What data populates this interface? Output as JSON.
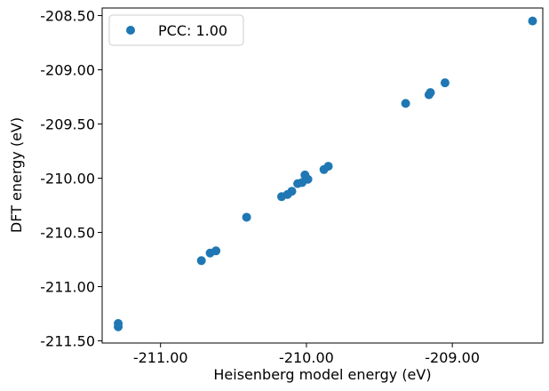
{
  "chart_data": {
    "type": "scatter",
    "xlabel": "Heisenberg model energy (eV)",
    "ylabel": "DFT energy (eV)",
    "xlim": [
      -211.4,
      -208.38
    ],
    "ylim": [
      -211.52,
      -208.43
    ],
    "x_ticks": [
      {
        "value": -211.0,
        "label": "-211.00"
      },
      {
        "value": -210.0,
        "label": "-210.00"
      },
      {
        "value": -209.0,
        "label": "-209.00"
      }
    ],
    "y_ticks": [
      {
        "value": -208.5,
        "label": "-208.50"
      },
      {
        "value": -209.0,
        "label": "-209.00"
      },
      {
        "value": -209.5,
        "label": "-209.50"
      },
      {
        "value": -210.0,
        "label": "-210.00"
      },
      {
        "value": -210.5,
        "label": "-210.50"
      },
      {
        "value": -211.0,
        "label": "-211.00"
      },
      {
        "value": -211.5,
        "label": "-211.50"
      }
    ],
    "grid": false,
    "legend_position": "top-left",
    "series": [
      {
        "name": "PCC: 1.00",
        "color": "#1f77b4",
        "points": [
          {
            "x": -211.29,
            "y": -211.34
          },
          {
            "x": -211.29,
            "y": -211.37
          },
          {
            "x": -210.72,
            "y": -210.76
          },
          {
            "x": -210.66,
            "y": -210.69
          },
          {
            "x": -210.62,
            "y": -210.67
          },
          {
            "x": -210.41,
            "y": -210.36
          },
          {
            "x": -210.17,
            "y": -210.17
          },
          {
            "x": -210.13,
            "y": -210.15
          },
          {
            "x": -210.1,
            "y": -210.12
          },
          {
            "x": -210.06,
            "y": -210.05
          },
          {
            "x": -210.03,
            "y": -210.04
          },
          {
            "x": -210.01,
            "y": -209.97
          },
          {
            "x": -209.99,
            "y": -210.01
          },
          {
            "x": -209.88,
            "y": -209.92
          },
          {
            "x": -209.85,
            "y": -209.89
          },
          {
            "x": -209.32,
            "y": -209.31
          },
          {
            "x": -209.16,
            "y": -209.23
          },
          {
            "x": -209.15,
            "y": -209.21
          },
          {
            "x": -209.05,
            "y": -209.12
          },
          {
            "x": -208.45,
            "y": -208.55
          }
        ]
      }
    ]
  }
}
